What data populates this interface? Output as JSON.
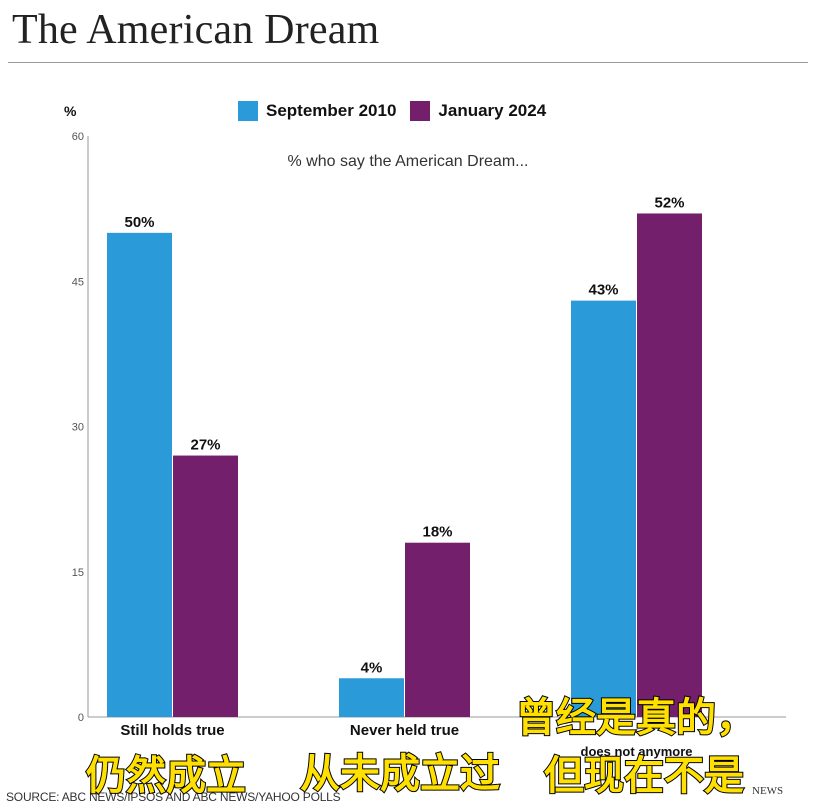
{
  "header": {
    "title": "The American Dream"
  },
  "unit_label": "%",
  "colors": {
    "series1": "#2a9ad9",
    "series2": "#741f6b",
    "axis": "#999999"
  },
  "chart_data": {
    "type": "bar",
    "title": "",
    "annotation": "% who say the American Dream...",
    "categories": [
      "Still holds true",
      "Never held true",
      "does not anymore"
    ],
    "series": [
      {
        "name": "September 2010",
        "values": [
          50,
          4,
          43
        ],
        "labels": [
          "50%",
          "4%",
          "43%"
        ]
      },
      {
        "name": "January 2024",
        "values": [
          27,
          18,
          52
        ],
        "labels": [
          "27%",
          "18%",
          "52%"
        ]
      }
    ],
    "yticks": [
      "0",
      "15",
      "30",
      "45",
      "60"
    ],
    "ylim": [
      0,
      60
    ],
    "grid": false,
    "legend": "top"
  },
  "footer": {
    "source": "SOURCE: ABC NEWS/IPSOS AND ABC NEWS/YAHOO POLLS",
    "brand": "NEWS"
  },
  "subtitles": {
    "still_holds": "仍然成立",
    "never_held": "从未成立过",
    "used_to_line1": "曾经是真的，",
    "used_to_line2": "但现在不是"
  }
}
